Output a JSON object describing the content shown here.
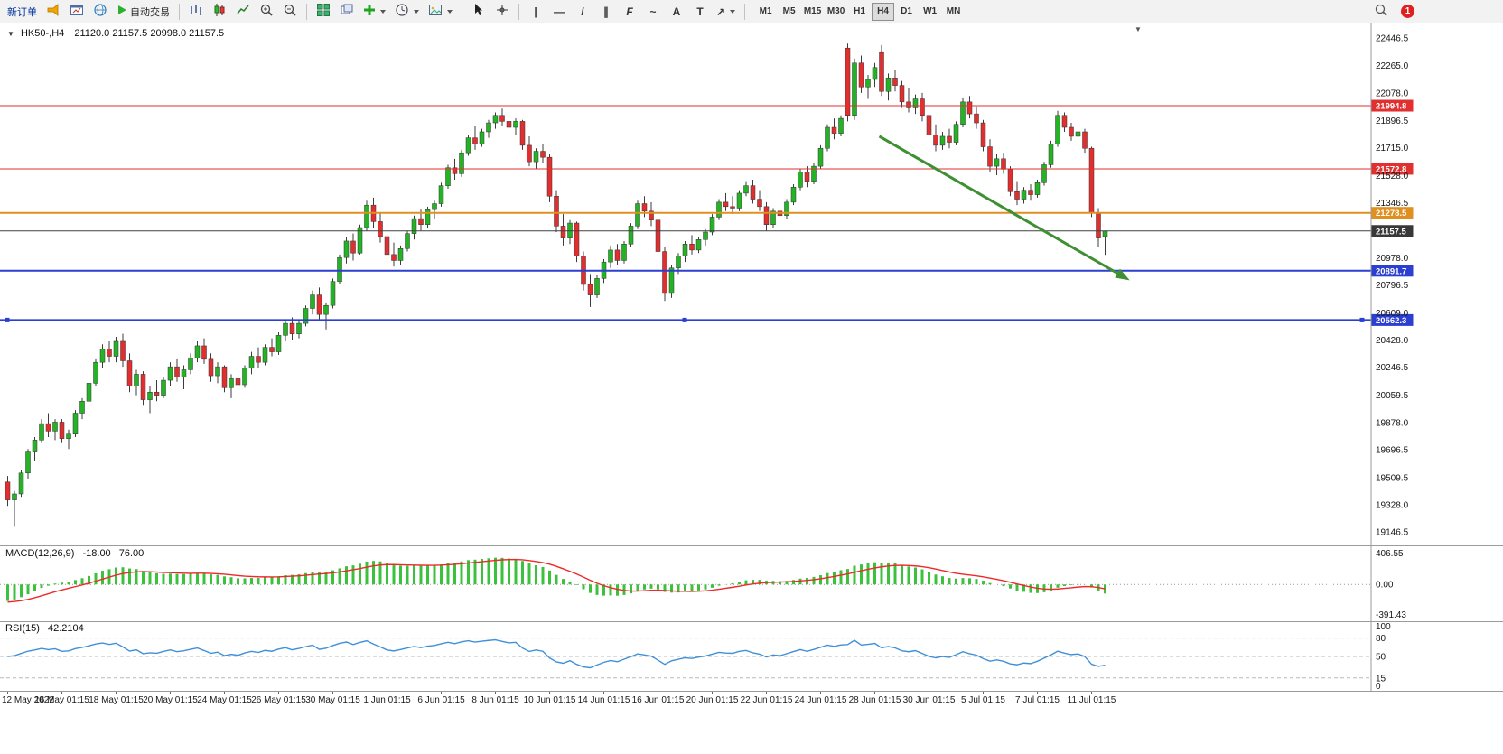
{
  "toolbar": {
    "new_order_label": "新订单",
    "auto_trading_label": "自动交易",
    "timeframes": [
      "M1",
      "M5",
      "M15",
      "M30",
      "H1",
      "H4",
      "D1",
      "W1",
      "MN"
    ],
    "active_timeframe": "H4",
    "notification_count": "1",
    "draw_tools": [
      {
        "name": "vertical-line",
        "glyph": "|"
      },
      {
        "name": "horizontal-line",
        "glyph": "—"
      },
      {
        "name": "trendline",
        "glyph": "/"
      },
      {
        "name": "equidistant-channel",
        "glyph": "∥"
      },
      {
        "name": "fibonacci",
        "glyph": "F"
      },
      {
        "name": "elliott-wave",
        "glyph": "~"
      },
      {
        "name": "text",
        "glyph": "A"
      },
      {
        "name": "text-label",
        "glyph": "T"
      },
      {
        "name": "arrows",
        "glyph": "↗",
        "caret": true
      }
    ]
  },
  "chart": {
    "collapse_glyph": "▼",
    "symbol_period": "HK50-,H4",
    "ohlc_text": "21120.0 21157.5 20998.0 21157.5",
    "shift_marker_glyph": "▼"
  },
  "indicators": {
    "macd": {
      "label": "MACD(12,26,9)",
      "main_value": "-18.00",
      "signal_value": "76.00",
      "axis": [
        "406.55",
        "0.00",
        "-391.43"
      ]
    },
    "rsi": {
      "label": "RSI(15)",
      "value": "42.2104",
      "axis": [
        "100",
        "80",
        "50",
        "15",
        "0"
      ],
      "levels": [
        80,
        50,
        15
      ]
    }
  },
  "chart_data": {
    "type": "candlestick",
    "symbol": "HK50-",
    "timeframe": "H4",
    "current_bar": {
      "open": 21120.0,
      "high": 21157.5,
      "low": 20998.0,
      "close": 21157.5
    },
    "ylim": [
      19080,
      22520
    ],
    "y_ticks": [
      22446.5,
      22265.0,
      22078.0,
      21896.5,
      21715.0,
      21528.0,
      21346.5,
      20978.0,
      20796.5,
      20609.0,
      20428.0,
      20246.5,
      20059.5,
      19878.0,
      19696.5,
      19509.5,
      19328.0,
      19146.5
    ],
    "x_labels": [
      "12 May 2022",
      "16 May 01:15",
      "18 May 01:15",
      "20 May 01:15",
      "24 May 01:15",
      "26 May 01:15",
      "30 May 01:15",
      "1 Jun 01:15",
      "6 Jun 01:15",
      "8 Jun 01:15",
      "10 Jun 01:15",
      "14 Jun 01:15",
      "16 Jun 01:15",
      "20 Jun 01:15",
      "22 Jun 01:15",
      "24 Jun 01:15",
      "28 Jun 01:15",
      "30 Jun 01:15",
      "5 Jul 01:15",
      "7 Jul 01:15",
      "11 Jul 01:15"
    ],
    "x_label_every": 8,
    "levels": [
      {
        "price": 21994.8,
        "label": "21994.8",
        "color": "#e03030",
        "width": 1
      },
      {
        "price": 21572.8,
        "label": "21572.8",
        "color": "#e03030",
        "width": 1
      },
      {
        "price": 21278.5,
        "label": "21278.5",
        "color": "#e09020",
        "width": 2
      },
      {
        "price": 20891.7,
        "label": "20891.7",
        "color": "#2b3fd0",
        "width": 2
      },
      {
        "price": 20562.3,
        "label": "20562.3",
        "color": "#2b3fd0",
        "width": 2,
        "handles": true
      }
    ],
    "current_price": {
      "price": 21157.5,
      "label": "21157.5",
      "color": "#404040",
      "tag": "#383838"
    },
    "arrow": {
      "from": {
        "index": 129,
        "price": 21790
      },
      "to": {
        "index": 165.5,
        "price": 20840
      },
      "color": "#3f8f33"
    },
    "colors": {
      "bull": "#24b324",
      "bear": "#e12f2f",
      "wick": "#3c3c3c",
      "candle_border": "#333333",
      "macd_hist": "#3cc13c",
      "macd_signal": "#ef2929",
      "rsi": "#4090d8",
      "level_dash": "#b8b8b8"
    },
    "candles": [
      [
        19480,
        19520,
        19320,
        19360
      ],
      [
        19360,
        19420,
        19180,
        19400
      ],
      [
        19400,
        19560,
        19380,
        19540
      ],
      [
        19540,
        19700,
        19500,
        19680
      ],
      [
        19680,
        19780,
        19620,
        19760
      ],
      [
        19760,
        19900,
        19740,
        19870
      ],
      [
        19870,
        19940,
        19780,
        19820
      ],
      [
        19820,
        19900,
        19760,
        19880
      ],
      [
        19880,
        19900,
        19740,
        19770
      ],
      [
        19770,
        19830,
        19700,
        19800
      ],
      [
        19800,
        19960,
        19780,
        19940
      ],
      [
        19940,
        20040,
        19900,
        20020
      ],
      [
        20020,
        20160,
        19990,
        20140
      ],
      [
        20140,
        20300,
        20120,
        20280
      ],
      [
        20280,
        20400,
        20240,
        20370
      ],
      [
        20370,
        20420,
        20280,
        20320
      ],
      [
        20320,
        20450,
        20280,
        20420
      ],
      [
        20420,
        20470,
        20250,
        20290
      ],
      [
        20290,
        20340,
        20080,
        20120
      ],
      [
        20120,
        20230,
        20060,
        20200
      ],
      [
        20200,
        20220,
        19990,
        20030
      ],
      [
        20030,
        20120,
        19940,
        20080
      ],
      [
        20080,
        20160,
        20020,
        20060
      ],
      [
        20060,
        20180,
        20040,
        20160
      ],
      [
        20160,
        20280,
        20120,
        20250
      ],
      [
        20250,
        20300,
        20150,
        20180
      ],
      [
        20180,
        20260,
        20100,
        20230
      ],
      [
        20230,
        20340,
        20200,
        20310
      ],
      [
        20310,
        20420,
        20280,
        20390
      ],
      [
        20390,
        20440,
        20270,
        20300
      ],
      [
        20300,
        20340,
        20150,
        20190
      ],
      [
        20190,
        20280,
        20140,
        20250
      ],
      [
        20250,
        20260,
        20080,
        20110
      ],
      [
        20110,
        20200,
        20040,
        20170
      ],
      [
        20170,
        20230,
        20100,
        20130
      ],
      [
        20130,
        20260,
        20110,
        20240
      ],
      [
        20240,
        20350,
        20200,
        20320
      ],
      [
        20320,
        20380,
        20240,
        20280
      ],
      [
        20280,
        20400,
        20260,
        20380
      ],
      [
        20380,
        20440,
        20320,
        20350
      ],
      [
        20350,
        20480,
        20330,
        20460
      ],
      [
        20460,
        20560,
        20420,
        20540
      ],
      [
        20540,
        20580,
        20430,
        20470
      ],
      [
        20470,
        20560,
        20440,
        20540
      ],
      [
        20540,
        20660,
        20520,
        20640
      ],
      [
        20640,
        20760,
        20600,
        20730
      ],
      [
        20730,
        20780,
        20560,
        20600
      ],
      [
        20600,
        20680,
        20500,
        20660
      ],
      [
        20660,
        20840,
        20640,
        20820
      ],
      [
        20820,
        21000,
        20800,
        20980
      ],
      [
        20980,
        21120,
        20940,
        21090
      ],
      [
        21090,
        21140,
        20960,
        21010
      ],
      [
        21010,
        21200,
        21000,
        21180
      ],
      [
        21180,
        21360,
        21160,
        21330
      ],
      [
        21330,
        21380,
        21180,
        21220
      ],
      [
        21220,
        21280,
        21080,
        21120
      ],
      [
        21120,
        21160,
        20960,
        21000
      ],
      [
        21000,
        21080,
        20920,
        20960
      ],
      [
        20960,
        21060,
        20930,
        21040
      ],
      [
        21040,
        21160,
        21020,
        21140
      ],
      [
        21140,
        21260,
        21100,
        21240
      ],
      [
        21240,
        21300,
        21160,
        21200
      ],
      [
        21200,
        21320,
        21180,
        21300
      ],
      [
        21300,
        21360,
        21240,
        21340
      ],
      [
        21340,
        21480,
        21320,
        21460
      ],
      [
        21460,
        21600,
        21440,
        21580
      ],
      [
        21580,
        21640,
        21500,
        21540
      ],
      [
        21540,
        21700,
        21520,
        21680
      ],
      [
        21680,
        21800,
        21660,
        21780
      ],
      [
        21780,
        21860,
        21700,
        21740
      ],
      [
        21740,
        21840,
        21720,
        21820
      ],
      [
        21820,
        21900,
        21780,
        21880
      ],
      [
        21880,
        21950,
        21840,
        21930
      ],
      [
        21930,
        21975,
        21860,
        21890
      ],
      [
        21890,
        21950,
        21820,
        21850
      ],
      [
        21850,
        21910,
        21800,
        21890
      ],
      [
        21890,
        21900,
        21700,
        21730
      ],
      [
        21730,
        21790,
        21590,
        21620
      ],
      [
        21620,
        21710,
        21570,
        21690
      ],
      [
        21690,
        21740,
        21610,
        21650
      ],
      [
        21650,
        21670,
        21350,
        21390
      ],
      [
        21390,
        21430,
        21150,
        21190
      ],
      [
        21190,
        21270,
        21060,
        21110
      ],
      [
        21110,
        21230,
        21070,
        21210
      ],
      [
        21210,
        21220,
        20950,
        20990
      ],
      [
        20990,
        21020,
        20760,
        20800
      ],
      [
        20800,
        20870,
        20650,
        20730
      ],
      [
        20730,
        20860,
        20710,
        20840
      ],
      [
        20840,
        20970,
        20810,
        20950
      ],
      [
        20950,
        21060,
        20910,
        21030
      ],
      [
        21030,
        21070,
        20930,
        20960
      ],
      [
        20960,
        21090,
        20940,
        21070
      ],
      [
        21070,
        21210,
        21050,
        21190
      ],
      [
        21190,
        21360,
        21170,
        21340
      ],
      [
        21340,
        21390,
        21250,
        21290
      ],
      [
        21290,
        21350,
        21190,
        21230
      ],
      [
        21230,
        21270,
        20990,
        21020
      ],
      [
        21020,
        21050,
        20690,
        20740
      ],
      [
        20740,
        20930,
        20710,
        20910
      ],
      [
        20910,
        21010,
        20870,
        20990
      ],
      [
        20990,
        21090,
        20950,
        21070
      ],
      [
        21070,
        21130,
        21000,
        21030
      ],
      [
        21030,
        21120,
        21010,
        21100
      ],
      [
        21100,
        21170,
        21060,
        21150
      ],
      [
        21150,
        21270,
        21130,
        21250
      ],
      [
        21250,
        21370,
        21230,
        21350
      ],
      [
        21350,
        21410,
        21290,
        21320
      ],
      [
        21320,
        21390,
        21270,
        21310
      ],
      [
        21310,
        21430,
        21290,
        21410
      ],
      [
        21410,
        21490,
        21390,
        21460
      ],
      [
        21460,
        21500,
        21340,
        21370
      ],
      [
        21370,
        21430,
        21290,
        21320
      ],
      [
        21320,
        21350,
        21160,
        21200
      ],
      [
        21200,
        21310,
        21180,
        21290
      ],
      [
        21290,
        21340,
        21230,
        21260
      ],
      [
        21260,
        21370,
        21240,
        21350
      ],
      [
        21350,
        21470,
        21330,
        21450
      ],
      [
        21450,
        21570,
        21430,
        21550
      ],
      [
        21550,
        21590,
        21450,
        21490
      ],
      [
        21490,
        21610,
        21470,
        21590
      ],
      [
        21590,
        21730,
        21570,
        21710
      ],
      [
        21710,
        21870,
        21690,
        21850
      ],
      [
        21850,
        21910,
        21770,
        21810
      ],
      [
        21810,
        21930,
        21790,
        21910
      ],
      [
        22380,
        22410,
        21890,
        21930
      ],
      [
        21930,
        22310,
        21900,
        22280
      ],
      [
        22280,
        22330,
        22080,
        22120
      ],
      [
        22120,
        22200,
        22040,
        22170
      ],
      [
        22170,
        22280,
        22120,
        22250
      ],
      [
        22350,
        22400,
        22060,
        22090
      ],
      [
        22090,
        22210,
        22030,
        22180
      ],
      [
        22180,
        22230,
        22090,
        22130
      ],
      [
        22130,
        22160,
        21980,
        22020
      ],
      [
        22020,
        22110,
        21950,
        21980
      ],
      [
        21980,
        22070,
        21940,
        22040
      ],
      [
        22040,
        22080,
        21890,
        21930
      ],
      [
        21930,
        21950,
        21770,
        21800
      ],
      [
        21800,
        21870,
        21690,
        21730
      ],
      [
        21730,
        21820,
        21700,
        21790
      ],
      [
        21790,
        21840,
        21710,
        21750
      ],
      [
        21750,
        21890,
        21730,
        21870
      ],
      [
        21870,
        22050,
        21850,
        22020
      ],
      [
        22020,
        22060,
        21910,
        21940
      ],
      [
        21940,
        21990,
        21840,
        21880
      ],
      [
        21880,
        21900,
        21690,
        21720
      ],
      [
        21720,
        21770,
        21550,
        21590
      ],
      [
        21590,
        21670,
        21530,
        21640
      ],
      [
        21640,
        21680,
        21540,
        21570
      ],
      [
        21570,
        21590,
        21390,
        21420
      ],
      [
        21420,
        21490,
        21330,
        21370
      ],
      [
        21370,
        21450,
        21340,
        21430
      ],
      [
        21430,
        21470,
        21360,
        21400
      ],
      [
        21400,
        21500,
        21380,
        21480
      ],
      [
        21480,
        21620,
        21460,
        21600
      ],
      [
        21600,
        21760,
        21580,
        21740
      ],
      [
        21740,
        21960,
        21720,
        21930
      ],
      [
        21930,
        21950,
        21820,
        21850
      ],
      [
        21850,
        21880,
        21760,
        21790
      ],
      [
        21790,
        21850,
        21730,
        21820
      ],
      [
        21820,
        21840,
        21680,
        21710
      ],
      [
        21710,
        21720,
        21250,
        21280
      ],
      [
        21280,
        21310,
        21050,
        21110
      ],
      [
        21120,
        21157.5,
        20998,
        21157.5
      ]
    ]
  }
}
